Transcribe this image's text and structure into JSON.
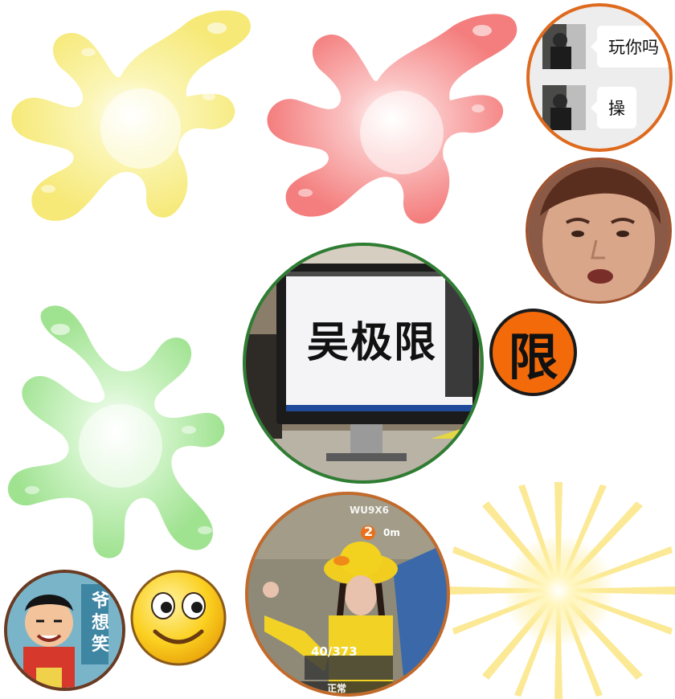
{
  "chat": {
    "messages": [
      {
        "text": "玩你吗"
      },
      {
        "text": "操"
      }
    ]
  },
  "monitor": {
    "screen_text": "吴极限"
  },
  "badge": {
    "char": "限"
  },
  "game": {
    "player_name": "WU9X6",
    "distance_number": "2",
    "distance_unit": "0m",
    "ammo": "40/373",
    "status": "正常"
  },
  "sticker": {
    "text": "爷想笑"
  },
  "colors": {
    "splat_yellow": "#f8ee8a",
    "splat_red": "#f58a8a",
    "splat_green": "#a9e79a",
    "burst_yellow": "#fce985"
  }
}
